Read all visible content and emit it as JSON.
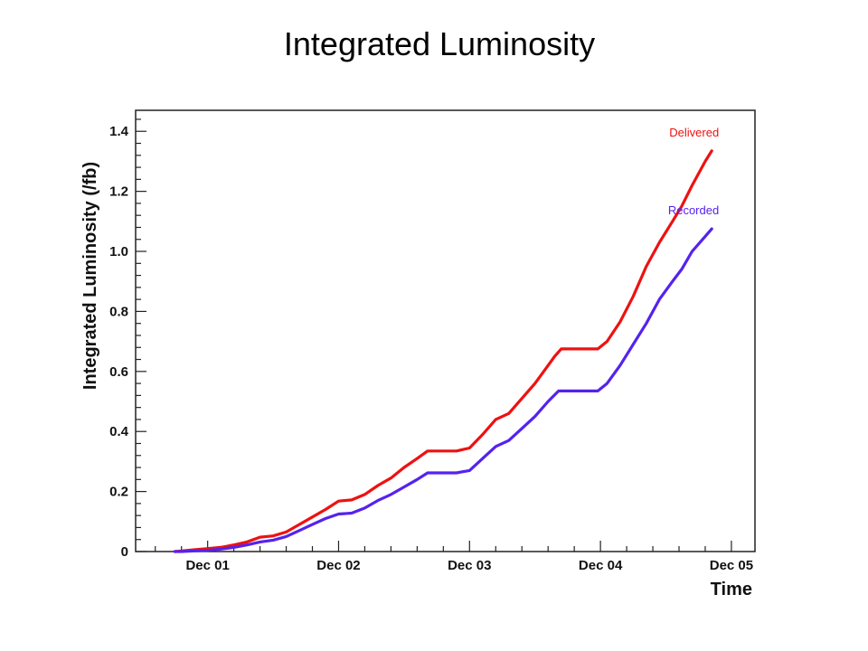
{
  "slide": {
    "title": "Integrated Luminosity"
  },
  "chart_data": {
    "type": "line",
    "title": "",
    "xlabel": "Time",
    "ylabel": "Integrated Luminosity (/fb)",
    "xlim": [
      -0.55,
      4.18
    ],
    "ylim": [
      0,
      1.47
    ],
    "grid": true,
    "legend": "inline-labels",
    "x_ticks": [
      {
        "value": 0,
        "label": "Dec 01"
      },
      {
        "value": 1,
        "label": "Dec 02"
      },
      {
        "value": 2,
        "label": "Dec 03"
      },
      {
        "value": 3,
        "label": "Dec 04"
      },
      {
        "value": 4,
        "label": "Dec 05"
      }
    ],
    "y_ticks": [
      {
        "value": 0,
        "label": "0"
      },
      {
        "value": 0.2,
        "label": "0.2"
      },
      {
        "value": 0.4,
        "label": "0.4"
      },
      {
        "value": 0.6,
        "label": "0.6"
      },
      {
        "value": 0.8,
        "label": "0.8"
      },
      {
        "value": 1.0,
        "label": "1.0"
      },
      {
        "value": 1.2,
        "label": "1.2"
      },
      {
        "value": 1.4,
        "label": "1.4"
      }
    ],
    "series": [
      {
        "name": "Delivered",
        "color": "#ee1111",
        "points": [
          [
            -0.25,
            0
          ],
          [
            -0.2,
            0.002
          ],
          [
            -0.1,
            0.006
          ],
          [
            0,
            0.01
          ],
          [
            0.1,
            0.014
          ],
          [
            0.2,
            0.022
          ],
          [
            0.3,
            0.032
          ],
          [
            0.4,
            0.048
          ],
          [
            0.5,
            0.052
          ],
          [
            0.6,
            0.065
          ],
          [
            0.7,
            0.09
          ],
          [
            0.8,
            0.115
          ],
          [
            0.9,
            0.14
          ],
          [
            1.0,
            0.168
          ],
          [
            1.1,
            0.172
          ],
          [
            1.2,
            0.19
          ],
          [
            1.3,
            0.22
          ],
          [
            1.4,
            0.245
          ],
          [
            1.5,
            0.28
          ],
          [
            1.6,
            0.31
          ],
          [
            1.68,
            0.335
          ],
          [
            1.8,
            0.335
          ],
          [
            1.9,
            0.335
          ],
          [
            2.0,
            0.345
          ],
          [
            2.1,
            0.39
          ],
          [
            2.2,
            0.44
          ],
          [
            2.3,
            0.46
          ],
          [
            2.4,
            0.51
          ],
          [
            2.5,
            0.56
          ],
          [
            2.6,
            0.62
          ],
          [
            2.65,
            0.65
          ],
          [
            2.7,
            0.675
          ],
          [
            2.8,
            0.675
          ],
          [
            2.9,
            0.675
          ],
          [
            2.98,
            0.675
          ],
          [
            3.05,
            0.7
          ],
          [
            3.15,
            0.765
          ],
          [
            3.25,
            0.85
          ],
          [
            3.35,
            0.95
          ],
          [
            3.45,
            1.03
          ],
          [
            3.55,
            1.1
          ],
          [
            3.62,
            1.15
          ],
          [
            3.7,
            1.22
          ],
          [
            3.8,
            1.3
          ],
          [
            3.85,
            1.335
          ]
        ]
      },
      {
        "name": "Recorded",
        "color": "#5522ee",
        "points": [
          [
            -0.25,
            0
          ],
          [
            -0.2,
            0
          ],
          [
            -0.1,
            0.002
          ],
          [
            0,
            0.004
          ],
          [
            0.1,
            0.008
          ],
          [
            0.2,
            0.014
          ],
          [
            0.3,
            0.022
          ],
          [
            0.4,
            0.032
          ],
          [
            0.5,
            0.038
          ],
          [
            0.6,
            0.05
          ],
          [
            0.7,
            0.07
          ],
          [
            0.8,
            0.09
          ],
          [
            0.9,
            0.11
          ],
          [
            1.0,
            0.125
          ],
          [
            1.1,
            0.128
          ],
          [
            1.2,
            0.145
          ],
          [
            1.3,
            0.17
          ],
          [
            1.4,
            0.19
          ],
          [
            1.5,
            0.215
          ],
          [
            1.6,
            0.24
          ],
          [
            1.68,
            0.262
          ],
          [
            1.8,
            0.262
          ],
          [
            1.9,
            0.262
          ],
          [
            2.0,
            0.27
          ],
          [
            2.1,
            0.31
          ],
          [
            2.2,
            0.35
          ],
          [
            2.3,
            0.37
          ],
          [
            2.4,
            0.41
          ],
          [
            2.5,
            0.45
          ],
          [
            2.6,
            0.5
          ],
          [
            2.68,
            0.535
          ],
          [
            2.8,
            0.535
          ],
          [
            2.9,
            0.535
          ],
          [
            2.98,
            0.535
          ],
          [
            3.05,
            0.56
          ],
          [
            3.15,
            0.62
          ],
          [
            3.25,
            0.69
          ],
          [
            3.35,
            0.76
          ],
          [
            3.45,
            0.84
          ],
          [
            3.55,
            0.9
          ],
          [
            3.62,
            0.94
          ],
          [
            3.7,
            1.0
          ],
          [
            3.8,
            1.05
          ],
          [
            3.85,
            1.075
          ]
        ]
      }
    ]
  }
}
